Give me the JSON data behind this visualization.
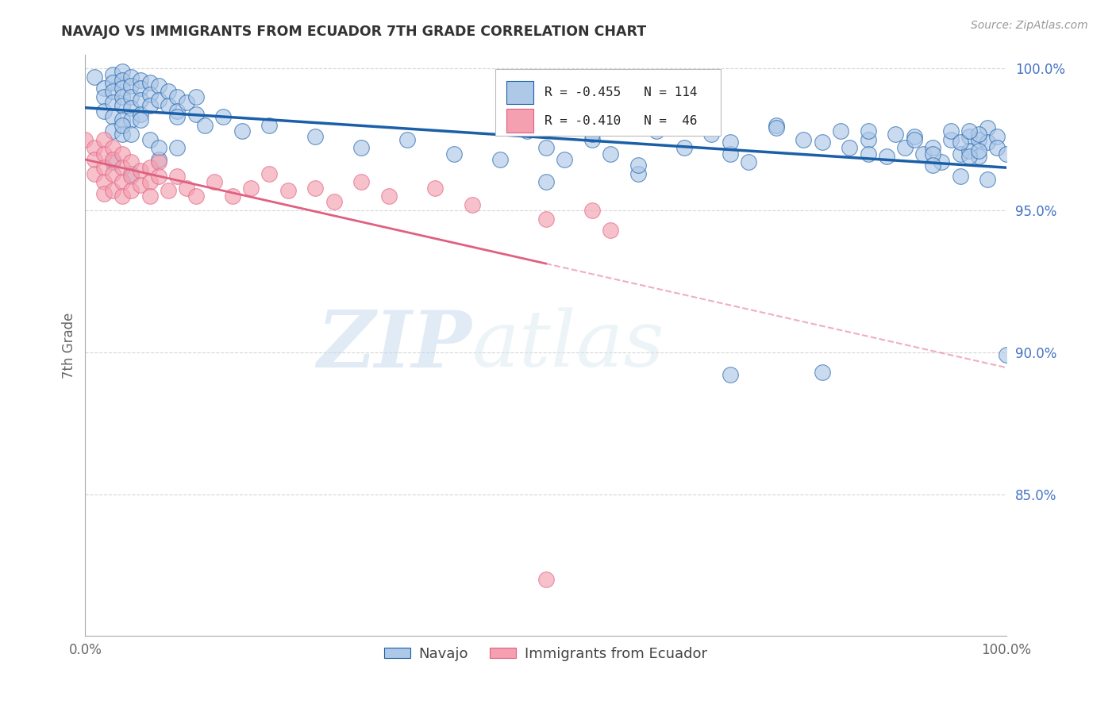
{
  "title": "NAVAJO VS IMMIGRANTS FROM ECUADOR 7TH GRADE CORRELATION CHART",
  "source": "Source: ZipAtlas.com",
  "ylabel": "7th Grade",
  "legend_label1": "Navajo",
  "legend_label2": "Immigrants from Ecuador",
  "r1": -0.455,
  "n1": 114,
  "r2": -0.41,
  "n2": 46,
  "color_blue": "#aec8e8",
  "color_pink": "#f4a0b0",
  "line_color_blue": "#1a5fa8",
  "line_color_pink": "#e06080",
  "watermark_zip": "ZIP",
  "watermark_atlas": "atlas",
  "xlim": [
    0.0,
    1.0
  ],
  "ylim": [
    0.8,
    1.005
  ],
  "yticks": [
    0.85,
    0.9,
    0.95,
    1.0
  ],
  "ytick_labels": [
    "85.0%",
    "90.0%",
    "95.0%",
    "100.0%"
  ],
  "blue_x": [
    0.01,
    0.02,
    0.02,
    0.02,
    0.03,
    0.03,
    0.03,
    0.03,
    0.03,
    0.03,
    0.04,
    0.04,
    0.04,
    0.04,
    0.04,
    0.04,
    0.04,
    0.05,
    0.05,
    0.05,
    0.05,
    0.05,
    0.06,
    0.06,
    0.06,
    0.06,
    0.07,
    0.07,
    0.07,
    0.08,
    0.08,
    0.09,
    0.09,
    0.1,
    0.1,
    0.11,
    0.12,
    0.13,
    0.15,
    0.17,
    0.2,
    0.25,
    0.3,
    0.35,
    0.4,
    0.45,
    0.48,
    0.5,
    0.52,
    0.55,
    0.57,
    0.6,
    0.62,
    0.65,
    0.68,
    0.7,
    0.72,
    0.75,
    0.78,
    0.8,
    0.82,
    0.83,
    0.85,
    0.87,
    0.88,
    0.89,
    0.9,
    0.91,
    0.92,
    0.93,
    0.94,
    0.95,
    0.96,
    0.96,
    0.97,
    0.97,
    0.98,
    0.98,
    0.99,
    0.99,
    1.0,
    0.04,
    0.05,
    0.06,
    0.07,
    0.08,
    0.1,
    0.12,
    0.55,
    0.65,
    0.7,
    0.75,
    0.8,
    0.85,
    0.9,
    0.92,
    0.94,
    0.95,
    0.96,
    0.97,
    0.03,
    0.05,
    0.08,
    0.1,
    0.5,
    0.6,
    0.7,
    0.85,
    0.92,
    0.95,
    0.96,
    0.97,
    0.98,
    1.0
  ],
  "blue_y": [
    0.997,
    0.993,
    0.99,
    0.985,
    0.998,
    0.995,
    0.992,
    0.988,
    0.983,
    0.978,
    0.999,
    0.996,
    0.993,
    0.99,
    0.987,
    0.982,
    0.977,
    0.997,
    0.994,
    0.99,
    0.986,
    0.982,
    0.996,
    0.993,
    0.989,
    0.984,
    0.995,
    0.991,
    0.987,
    0.994,
    0.989,
    0.992,
    0.987,
    0.99,
    0.985,
    0.988,
    0.984,
    0.98,
    0.983,
    0.978,
    0.98,
    0.976,
    0.972,
    0.975,
    0.97,
    0.968,
    0.978,
    0.972,
    0.968,
    0.975,
    0.97,
    0.963,
    0.978,
    0.972,
    0.977,
    0.97,
    0.967,
    0.98,
    0.975,
    0.974,
    0.978,
    0.972,
    0.975,
    0.969,
    0.977,
    0.972,
    0.976,
    0.97,
    0.972,
    0.967,
    0.975,
    0.97,
    0.976,
    0.971,
    0.975,
    0.969,
    0.979,
    0.974,
    0.976,
    0.972,
    0.97,
    0.98,
    0.977,
    0.982,
    0.975,
    0.968,
    0.972,
    0.99,
    0.977,
    0.98,
    0.974,
    0.979,
    0.893,
    0.978,
    0.975,
    0.97,
    0.978,
    0.974,
    0.969,
    0.977,
    0.967,
    0.963,
    0.972,
    0.983,
    0.96,
    0.966,
    0.892,
    0.97,
    0.966,
    0.962,
    0.978,
    0.971,
    0.961,
    0.899
  ],
  "pink_x": [
    0.0,
    0.01,
    0.01,
    0.01,
    0.02,
    0.02,
    0.02,
    0.02,
    0.02,
    0.03,
    0.03,
    0.03,
    0.03,
    0.04,
    0.04,
    0.04,
    0.04,
    0.05,
    0.05,
    0.05,
    0.06,
    0.06,
    0.07,
    0.07,
    0.07,
    0.08,
    0.08,
    0.09,
    0.1,
    0.11,
    0.12,
    0.14,
    0.16,
    0.18,
    0.2,
    0.22,
    0.25,
    0.27,
    0.3,
    0.33,
    0.38,
    0.42,
    0.5,
    0.55,
    0.57,
    0.5
  ],
  "pink_y": [
    0.975,
    0.972,
    0.968,
    0.963,
    0.975,
    0.97,
    0.965,
    0.96,
    0.956,
    0.972,
    0.968,
    0.963,
    0.957,
    0.97,
    0.965,
    0.96,
    0.955,
    0.967,
    0.962,
    0.957,
    0.964,
    0.959,
    0.965,
    0.96,
    0.955,
    0.967,
    0.962,
    0.957,
    0.962,
    0.958,
    0.955,
    0.96,
    0.955,
    0.958,
    0.963,
    0.957,
    0.958,
    0.953,
    0.96,
    0.955,
    0.958,
    0.952,
    0.947,
    0.95,
    0.943,
    0.82
  ]
}
